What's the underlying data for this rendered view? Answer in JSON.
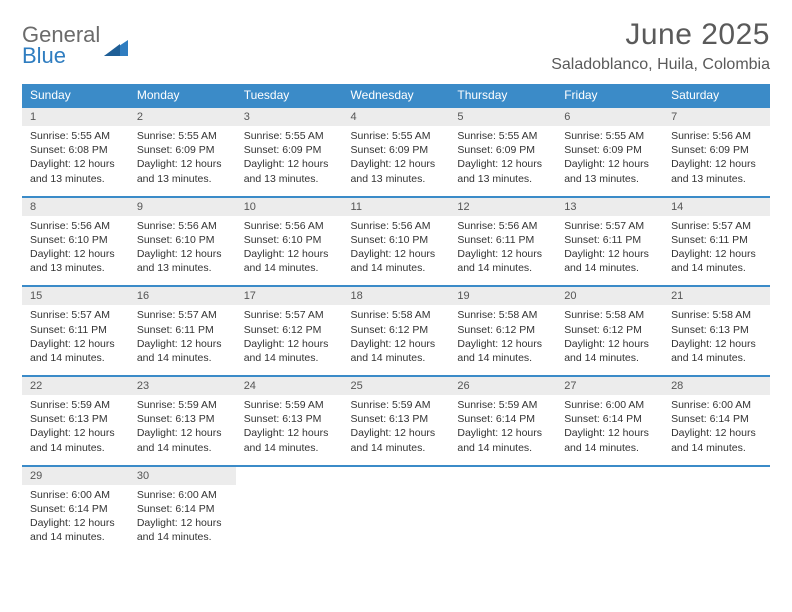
{
  "logo": {
    "general": "General",
    "blue": "Blue"
  },
  "title": "June 2025",
  "location": "Saladoblanco, Huila, Colombia",
  "colors": {
    "header_bg": "#3b8bc8",
    "header_text": "#ffffff",
    "daynum_bg": "#ececec",
    "rule": "#3b8bc8",
    "logo_gray": "#6b6b6b",
    "logo_blue": "#2f7dc0"
  },
  "dow": [
    "Sunday",
    "Monday",
    "Tuesday",
    "Wednesday",
    "Thursday",
    "Friday",
    "Saturday"
  ],
  "weeks": [
    [
      {
        "n": "1",
        "sr": "5:55 AM",
        "ss": "6:08 PM",
        "dl": "12 hours and 13 minutes."
      },
      {
        "n": "2",
        "sr": "5:55 AM",
        "ss": "6:09 PM",
        "dl": "12 hours and 13 minutes."
      },
      {
        "n": "3",
        "sr": "5:55 AM",
        "ss": "6:09 PM",
        "dl": "12 hours and 13 minutes."
      },
      {
        "n": "4",
        "sr": "5:55 AM",
        "ss": "6:09 PM",
        "dl": "12 hours and 13 minutes."
      },
      {
        "n": "5",
        "sr": "5:55 AM",
        "ss": "6:09 PM",
        "dl": "12 hours and 13 minutes."
      },
      {
        "n": "6",
        "sr": "5:55 AM",
        "ss": "6:09 PM",
        "dl": "12 hours and 13 minutes."
      },
      {
        "n": "7",
        "sr": "5:56 AM",
        "ss": "6:09 PM",
        "dl": "12 hours and 13 minutes."
      }
    ],
    [
      {
        "n": "8",
        "sr": "5:56 AM",
        "ss": "6:10 PM",
        "dl": "12 hours and 13 minutes."
      },
      {
        "n": "9",
        "sr": "5:56 AM",
        "ss": "6:10 PM",
        "dl": "12 hours and 13 minutes."
      },
      {
        "n": "10",
        "sr": "5:56 AM",
        "ss": "6:10 PM",
        "dl": "12 hours and 14 minutes."
      },
      {
        "n": "11",
        "sr": "5:56 AM",
        "ss": "6:10 PM",
        "dl": "12 hours and 14 minutes."
      },
      {
        "n": "12",
        "sr": "5:56 AM",
        "ss": "6:11 PM",
        "dl": "12 hours and 14 minutes."
      },
      {
        "n": "13",
        "sr": "5:57 AM",
        "ss": "6:11 PM",
        "dl": "12 hours and 14 minutes."
      },
      {
        "n": "14",
        "sr": "5:57 AM",
        "ss": "6:11 PM",
        "dl": "12 hours and 14 minutes."
      }
    ],
    [
      {
        "n": "15",
        "sr": "5:57 AM",
        "ss": "6:11 PM",
        "dl": "12 hours and 14 minutes."
      },
      {
        "n": "16",
        "sr": "5:57 AM",
        "ss": "6:11 PM",
        "dl": "12 hours and 14 minutes."
      },
      {
        "n": "17",
        "sr": "5:57 AM",
        "ss": "6:12 PM",
        "dl": "12 hours and 14 minutes."
      },
      {
        "n": "18",
        "sr": "5:58 AM",
        "ss": "6:12 PM",
        "dl": "12 hours and 14 minutes."
      },
      {
        "n": "19",
        "sr": "5:58 AM",
        "ss": "6:12 PM",
        "dl": "12 hours and 14 minutes."
      },
      {
        "n": "20",
        "sr": "5:58 AM",
        "ss": "6:12 PM",
        "dl": "12 hours and 14 minutes."
      },
      {
        "n": "21",
        "sr": "5:58 AM",
        "ss": "6:13 PM",
        "dl": "12 hours and 14 minutes."
      }
    ],
    [
      {
        "n": "22",
        "sr": "5:59 AM",
        "ss": "6:13 PM",
        "dl": "12 hours and 14 minutes."
      },
      {
        "n": "23",
        "sr": "5:59 AM",
        "ss": "6:13 PM",
        "dl": "12 hours and 14 minutes."
      },
      {
        "n": "24",
        "sr": "5:59 AM",
        "ss": "6:13 PM",
        "dl": "12 hours and 14 minutes."
      },
      {
        "n": "25",
        "sr": "5:59 AM",
        "ss": "6:13 PM",
        "dl": "12 hours and 14 minutes."
      },
      {
        "n": "26",
        "sr": "5:59 AM",
        "ss": "6:14 PM",
        "dl": "12 hours and 14 minutes."
      },
      {
        "n": "27",
        "sr": "6:00 AM",
        "ss": "6:14 PM",
        "dl": "12 hours and 14 minutes."
      },
      {
        "n": "28",
        "sr": "6:00 AM",
        "ss": "6:14 PM",
        "dl": "12 hours and 14 minutes."
      }
    ],
    [
      {
        "n": "29",
        "sr": "6:00 AM",
        "ss": "6:14 PM",
        "dl": "12 hours and 14 minutes."
      },
      {
        "n": "30",
        "sr": "6:00 AM",
        "ss": "6:14 PM",
        "dl": "12 hours and 14 minutes."
      },
      null,
      null,
      null,
      null,
      null
    ]
  ],
  "labels": {
    "sunrise": "Sunrise: ",
    "sunset": "Sunset: ",
    "daylight": "Daylight: "
  }
}
